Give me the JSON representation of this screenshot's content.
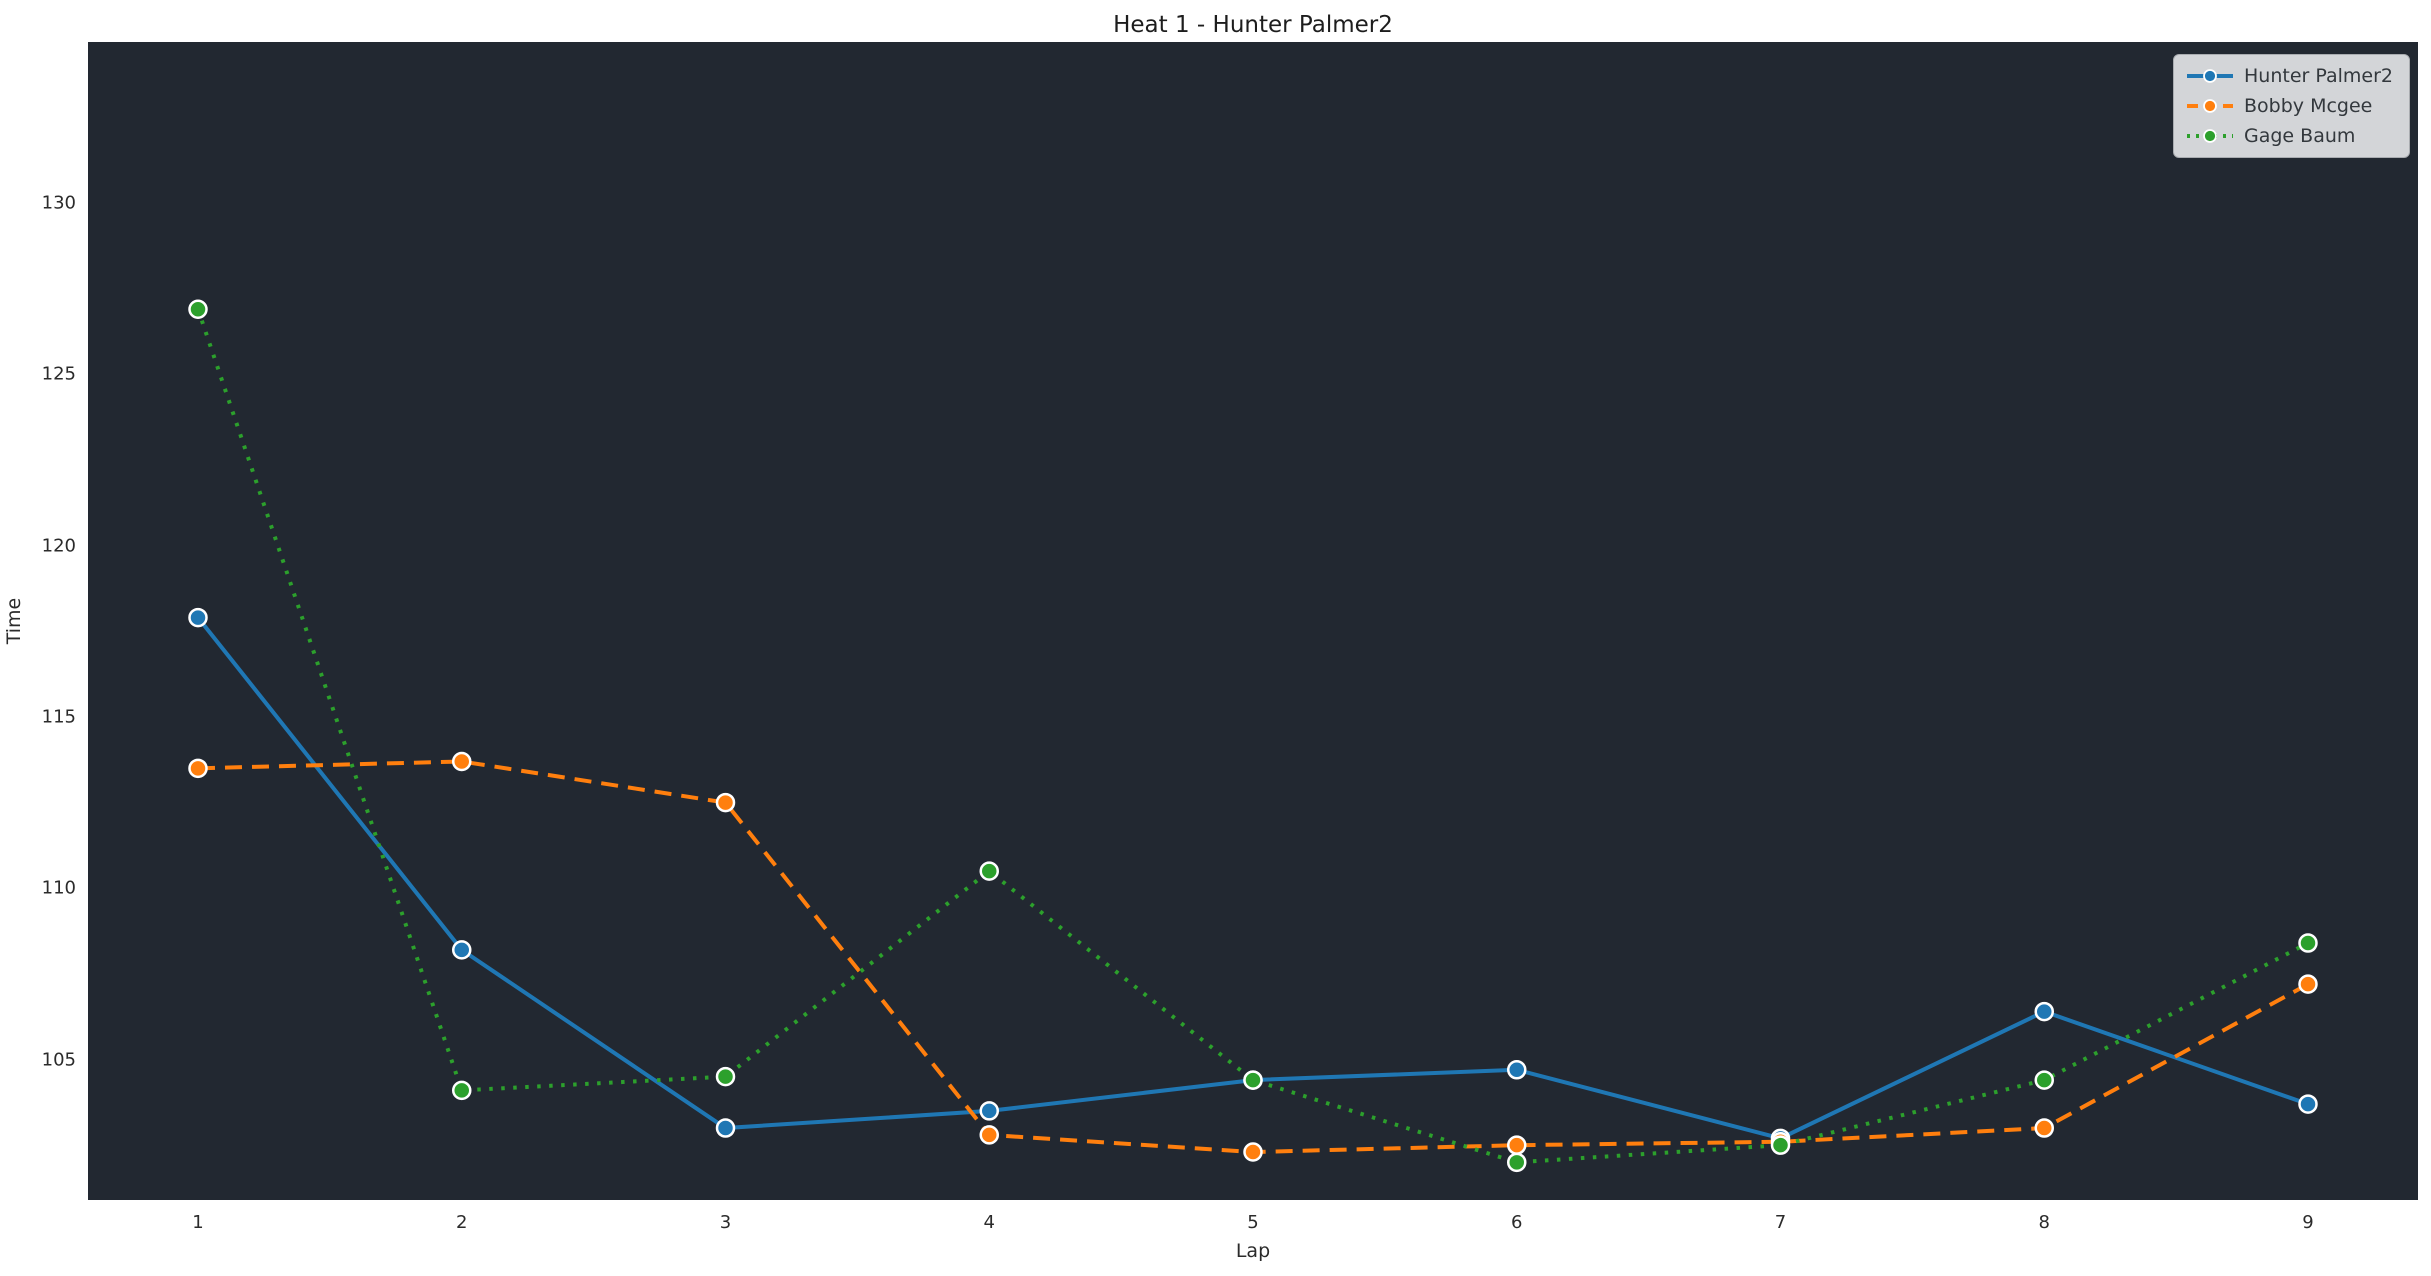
{
  "title": "Heat 1 - Hunter Palmer2",
  "colors": {
    "page_background": "#ffffff",
    "plot_background": "#222831",
    "text": "#262626",
    "legend_background": "#d3d5d8",
    "legend_border": "#a9acb0",
    "series_blue": "#1f77b4",
    "series_orange": "#ff7f0e",
    "series_green": "#2ca02c",
    "marker_edge": "#ffffff"
  },
  "chart_data": {
    "type": "line",
    "title": "Heat 1 - Hunter Palmer2",
    "xlabel": "Lap",
    "ylabel": "Time",
    "x": [
      1,
      2,
      3,
      4,
      5,
      6,
      7,
      8,
      9
    ],
    "xticks": [
      "1",
      "2",
      "3",
      "4",
      "5",
      "6",
      "7",
      "8",
      "9"
    ],
    "yticks": [
      105,
      110,
      115,
      120,
      125,
      130
    ],
    "ylim": [
      100.9,
      134.7
    ],
    "grid": false,
    "legend_position": "upper right",
    "series": [
      {
        "name": "Hunter Palmer2",
        "color": "#1f77b4",
        "line_style": "solid",
        "marker": "circle",
        "values": [
          117.9,
          108.2,
          103.0,
          103.5,
          104.4,
          104.7,
          102.7,
          106.4,
          103.7
        ]
      },
      {
        "name": "Bobby Mcgee",
        "color": "#ff7f0e",
        "line_style": "dashed",
        "marker": "circle",
        "values": [
          113.5,
          113.7,
          112.5,
          102.8,
          102.3,
          102.5,
          102.6,
          103.0,
          107.2
        ]
      },
      {
        "name": "Gage Baum",
        "color": "#2ca02c",
        "line_style": "dotted",
        "marker": "circle",
        "values": [
          126.9,
          104.1,
          104.5,
          110.5,
          104.4,
          102.0,
          102.5,
          104.4,
          108.4
        ]
      }
    ]
  }
}
